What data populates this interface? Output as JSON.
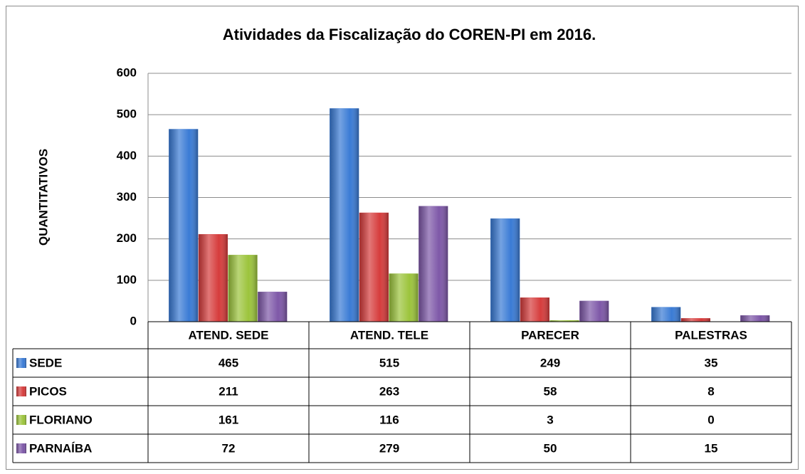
{
  "chart_data": {
    "type": "bar",
    "title": "Atividades da Fiscalização do COREN-PI em 2016.",
    "y_label": "QUANTITATIVOS",
    "categories": [
      "ATEND. SEDE",
      "ATEND. TELE",
      "PARECER",
      "PALESTRAS"
    ],
    "series": [
      {
        "name": "SEDE",
        "color": "#3a7bd5",
        "values": [
          465,
          515,
          249,
          35
        ]
      },
      {
        "name": "PICOS",
        "color": "#d63c3c",
        "values": [
          211,
          263,
          58,
          8
        ]
      },
      {
        "name": "FLORIANO",
        "color": "#9cc43c",
        "values": [
          161,
          116,
          3,
          0
        ]
      },
      {
        "name": "PARNAÍBA",
        "color": "#7e58a8",
        "values": [
          72,
          279,
          50,
          15
        ]
      }
    ],
    "ylim": [
      0,
      600
    ],
    "yticks": [
      0,
      100,
      200,
      300,
      400,
      500,
      600
    ],
    "grid": true
  }
}
